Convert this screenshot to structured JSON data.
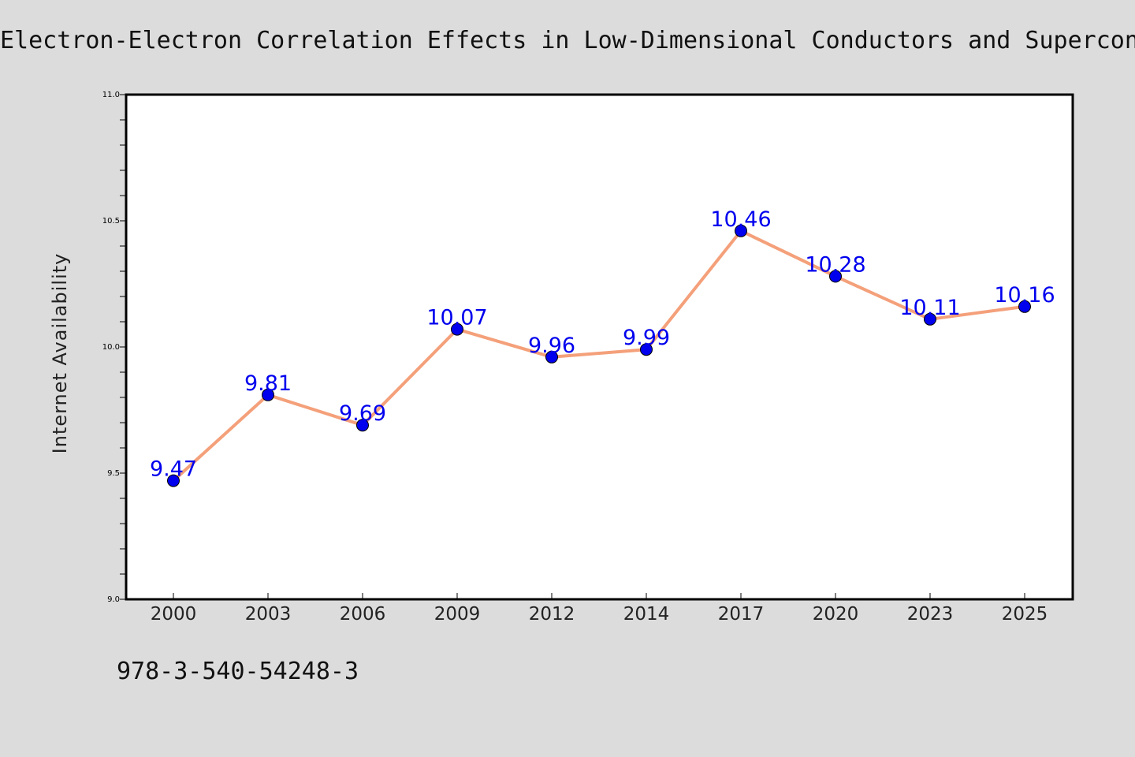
{
  "chart_data": {
    "type": "line",
    "title": "Electron-Electron Correlation Effects in Low-Dimensional Conductors and Supercon",
    "xlabel": "",
    "ylabel": "Internet Availability",
    "categories": [
      "2000",
      "2003",
      "2006",
      "2009",
      "2012",
      "2014",
      "2017",
      "2020",
      "2023",
      "2025"
    ],
    "values": [
      9.47,
      9.81,
      9.69,
      10.07,
      9.96,
      9.99,
      10.46,
      10.28,
      10.11,
      10.16
    ],
    "data_labels": [
      "9.47",
      "9.81",
      "9.69",
      "10.07",
      "9.96",
      "9.99",
      "10.46",
      "10.28",
      "10.11",
      "10.16"
    ],
    "ylim": [
      9.0,
      11.0
    ],
    "yticks": [
      "9.0",
      "9.5",
      "10.0",
      "10.5",
      "11.0"
    ],
    "grid": false,
    "legend": "none",
    "colors": {
      "line": "#f4a07a",
      "marker": "#0000ee",
      "label": "#0000ee",
      "background": "#dcdcdc",
      "plot_area": "#ffffff"
    }
  },
  "footer_text": "978-3-540-54248-3"
}
